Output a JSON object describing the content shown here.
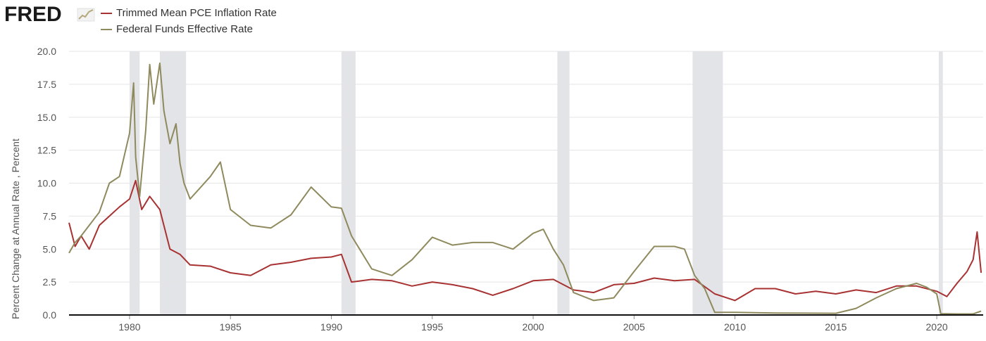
{
  "logo": {
    "text": "FRED",
    "icon": "chart-line-icon"
  },
  "legend": [
    {
      "label": "Trimmed Mean PCE Inflation Rate",
      "color": "#a83232"
    },
    {
      "label": "Federal Funds Effective Rate",
      "color": "#8f8a5e"
    }
  ],
  "colors": {
    "recession": "#e3e4e8",
    "grid": "#e5e5e5",
    "axis": "#111111"
  },
  "chart_data": {
    "type": "line",
    "title": "",
    "xlabel": "",
    "ylabel": "Percent Change at Annual Rate , Percent",
    "xlim": [
      1977.0,
      2022.3
    ],
    "ylim": [
      0,
      20
    ],
    "x_ticks": [
      1980,
      1985,
      1990,
      1995,
      2000,
      2005,
      2010,
      2015,
      2020
    ],
    "x_tick_labels": [
      "1980",
      "1985",
      "1990",
      "1995",
      "2000",
      "2005",
      "2010",
      "2015",
      "2020"
    ],
    "y_ticks": [
      0,
      2.5,
      5,
      7.5,
      10,
      12.5,
      15,
      17.5,
      20
    ],
    "y_tick_labels": [
      "0.0",
      "2.5",
      "5.0",
      "7.5",
      "10.0",
      "12.5",
      "15.0",
      "17.5",
      "20.0"
    ],
    "grid": "horizontal",
    "legend_position": "top-left",
    "recessions": [
      [
        1980.0,
        1980.5
      ],
      [
        1981.5,
        1982.8
      ],
      [
        1990.5,
        1991.2
      ],
      [
        2001.2,
        2001.8
      ],
      [
        2007.9,
        2009.4
      ],
      [
        2020.1,
        2020.3
      ]
    ],
    "series": [
      {
        "name": "Trimmed Mean PCE Inflation Rate",
        "x": [
          1977.0,
          1977.3,
          1977.6,
          1978.0,
          1978.5,
          1979.0,
          1979.5,
          1980.0,
          1980.3,
          1980.6,
          1981.0,
          1981.5,
          1982.0,
          1982.5,
          1983.0,
          1984.0,
          1985.0,
          1986.0,
          1987.0,
          1988.0,
          1989.0,
          1990.0,
          1990.5,
          1991.0,
          1992.0,
          1993.0,
          1994.0,
          1995.0,
          1996.0,
          1997.0,
          1998.0,
          1999.0,
          2000.0,
          2001.0,
          2002.0,
          2003.0,
          2004.0,
          2005.0,
          2006.0,
          2007.0,
          2008.0,
          2009.0,
          2010.0,
          2011.0,
          2012.0,
          2013.0,
          2014.0,
          2015.0,
          2016.0,
          2017.0,
          2018.0,
          2019.0,
          2020.0,
          2020.5,
          2021.0,
          2021.5,
          2021.8,
          2022.0,
          2022.2
        ],
        "values": [
          7.0,
          5.2,
          6.0,
          5.0,
          6.8,
          7.5,
          8.2,
          8.8,
          10.2,
          8.0,
          9.0,
          8.0,
          5.0,
          4.6,
          3.8,
          3.7,
          3.2,
          3.0,
          3.8,
          4.0,
          4.3,
          4.4,
          4.6,
          2.5,
          2.7,
          2.6,
          2.2,
          2.5,
          2.3,
          2.0,
          1.5,
          2.0,
          2.6,
          2.7,
          1.9,
          1.7,
          2.3,
          2.4,
          2.8,
          2.6,
          2.7,
          1.6,
          1.1,
          2.0,
          2.0,
          1.6,
          1.8,
          1.6,
          1.9,
          1.7,
          2.2,
          2.2,
          1.8,
          1.4,
          2.4,
          3.3,
          4.2,
          6.3,
          3.2
        ]
      },
      {
        "name": "Federal Funds Effective Rate",
        "x": [
          1977.0,
          1977.3,
          1977.6,
          1978.0,
          1978.5,
          1979.0,
          1979.5,
          1980.0,
          1980.2,
          1980.3,
          1980.5,
          1980.8,
          1981.0,
          1981.2,
          1981.5,
          1981.7,
          1982.0,
          1982.3,
          1982.5,
          1982.7,
          1983.0,
          1984.0,
          1984.5,
          1985.0,
          1986.0,
          1987.0,
          1988.0,
          1989.0,
          1990.0,
          1990.5,
          1991.0,
          1992.0,
          1993.0,
          1994.0,
          1995.0,
          1996.0,
          1997.0,
          1998.0,
          1999.0,
          2000.0,
          2000.5,
          2001.0,
          2001.5,
          2002.0,
          2003.0,
          2004.0,
          2005.0,
          2006.0,
          2007.0,
          2007.5,
          2008.0,
          2008.5,
          2009.0,
          2010.0,
          2012.0,
          2015.0,
          2016.0,
          2017.0,
          2018.0,
          2019.0,
          2019.5,
          2020.0,
          2020.2,
          2020.5,
          2021.0,
          2021.8,
          2022.2
        ],
        "values": [
          4.7,
          5.5,
          6.0,
          6.8,
          7.8,
          10.0,
          10.5,
          13.8,
          17.6,
          12.0,
          9.0,
          14.0,
          19.0,
          16.0,
          19.1,
          15.5,
          13.0,
          14.5,
          11.5,
          10.0,
          8.8,
          10.5,
          11.6,
          8.0,
          6.8,
          6.6,
          7.6,
          9.7,
          8.2,
          8.1,
          6.0,
          3.5,
          3.0,
          4.2,
          5.9,
          5.3,
          5.5,
          5.5,
          5.0,
          6.2,
          6.5,
          5.0,
          3.8,
          1.7,
          1.1,
          1.3,
          3.3,
          5.2,
          5.2,
          5.0,
          3.0,
          2.0,
          0.2,
          0.2,
          0.15,
          0.13,
          0.5,
          1.3,
          2.0,
          2.4,
          2.1,
          1.6,
          0.1,
          0.09,
          0.08,
          0.08,
          0.3
        ]
      }
    ]
  }
}
